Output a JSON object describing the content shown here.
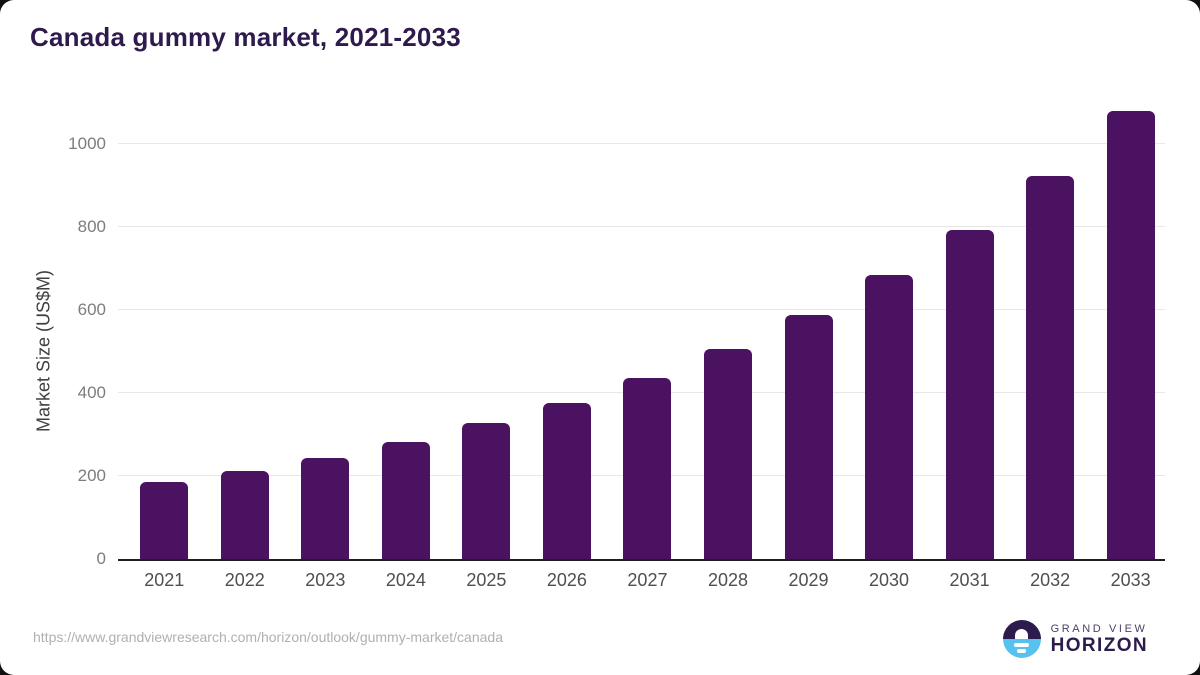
{
  "title": "Canada gummy market, 2021-2033",
  "chart_data": {
    "type": "bar",
    "title": "Canada gummy market, 2021-2033",
    "categories": [
      "2021",
      "2022",
      "2023",
      "2024",
      "2025",
      "2026",
      "2027",
      "2028",
      "2029",
      "2030",
      "2031",
      "2032",
      "2033"
    ],
    "values": [
      186,
      213,
      244,
      282,
      327,
      377,
      437,
      507,
      587,
      684,
      793,
      924,
      1080
    ],
    "xlabel": "",
    "ylabel": "Market Size (US$M)",
    "ylim": [
      0,
      1106
    ],
    "yticks": [
      0,
      200,
      400,
      600,
      800,
      1000
    ],
    "grid": "horizontal",
    "legend": "none",
    "bar_color": "#4a1260"
  },
  "footer": {
    "source_url": "https://www.grandviewresearch.com/horizon/outlook/gummy-market/canada",
    "brand": {
      "line1": "GRAND VIEW",
      "line2": "HORIZON"
    }
  },
  "colors": {
    "title": "#2f1a4e",
    "bar": "#4a1260",
    "gridline": "#e8e8e8",
    "axis_line": "#1f1f1f",
    "y_tick_label": "#7d7d7d",
    "x_tick_label": "#4f4f4f",
    "url_text": "#b0b0b0",
    "logo_blue": "#58c2ef",
    "logo_purple": "#2e1b4d"
  }
}
